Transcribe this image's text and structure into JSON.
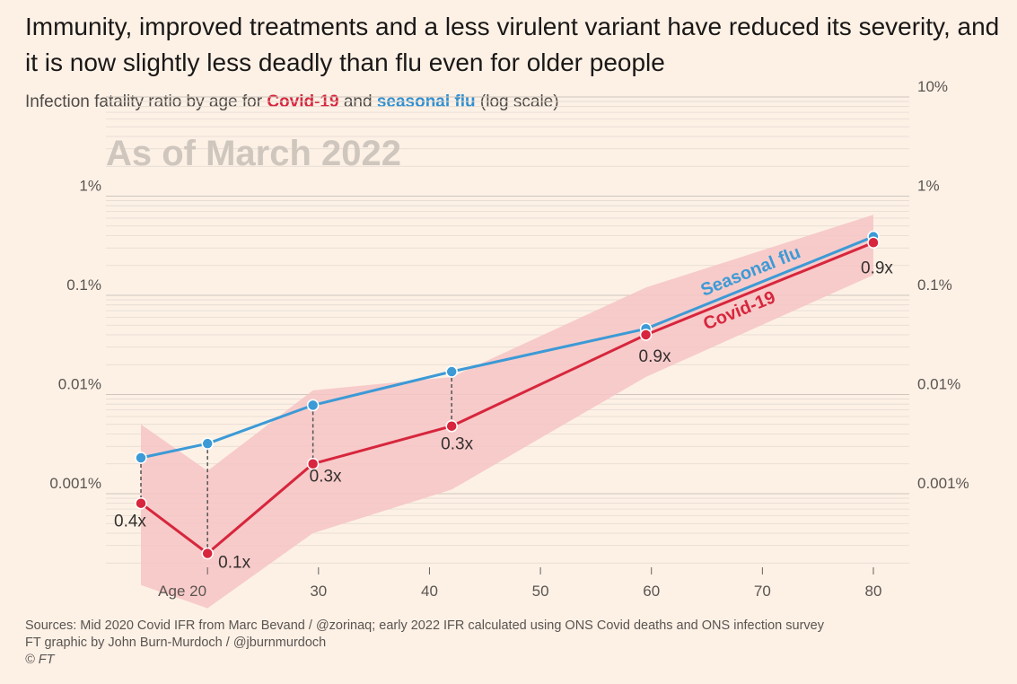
{
  "headline": "Immunity, improved treatments and a less virulent variant have reduced its severity, and it is now slightly less deadly than flu even for older people",
  "subtitle": {
    "prefix": "Infection fatality ratio by age for ",
    "covid": "Covid-19",
    "middle": " and ",
    "flu": "seasonal flu",
    "suffix": " (log scale)"
  },
  "colors": {
    "background": "#fdf1e6",
    "covid": "#d7263d",
    "flu": "#3c9ad6",
    "band": "#f6c4c4",
    "grid": "#e4dad0"
  },
  "sources": {
    "line1": "Sources: Mid 2020 Covid IFR from Marc Bevand / @zorinaq; early 2022 IFR calculated using ONS Covid deaths and ONS infection survey",
    "line2": "FT graphic by John Burn-Murdoch / @jburnmurdoch",
    "line3": "© FT"
  },
  "chart_data": {
    "type": "line",
    "annotation": "As of March 2022",
    "yscale": "log",
    "ylim": [
      0.0001,
      10
    ],
    "xlim": [
      14,
      82
    ],
    "grid": true,
    "y_ticks": [
      {
        "value": 10,
        "left": "",
        "right": "10%"
      },
      {
        "value": 1,
        "left": "1%",
        "right": "1%"
      },
      {
        "value": 0.1,
        "left": "0.1%",
        "right": "0.1%"
      },
      {
        "value": 0.01,
        "left": "0.01%",
        "right": "0.01%"
      },
      {
        "value": 0.001,
        "left": "0.001%",
        "right": "0.001%"
      }
    ],
    "x_ticks": [
      {
        "value": 20,
        "label": "Age 20"
      },
      {
        "value": 30,
        "label": "30"
      },
      {
        "value": 40,
        "label": "40"
      },
      {
        "value": 50,
        "label": "50"
      },
      {
        "value": 60,
        "label": "60"
      },
      {
        "value": 70,
        "label": "70"
      },
      {
        "value": 80,
        "label": "80"
      }
    ],
    "series": [
      {
        "name": "Seasonal flu",
        "key": "flu",
        "x": [
          14,
          20,
          29.5,
          42,
          59.5,
          80
        ],
        "y": [
          0.0023,
          0.0032,
          0.0078,
          0.017,
          0.046,
          0.39
        ]
      },
      {
        "name": "Covid-19",
        "key": "covid",
        "x": [
          14,
          20,
          29.5,
          42,
          59.5,
          80
        ],
        "y": [
          0.0008,
          0.00025,
          0.002,
          0.0048,
          0.04,
          0.34
        ]
      }
    ],
    "covid_range_band": {
      "x": [
        14,
        20,
        29.5,
        42,
        59.5,
        80
      ],
      "upper": [
        0.005,
        0.0017,
        0.011,
        0.015,
        0.12,
        0.65
      ],
      "lower": [
        0.00012,
        7e-05,
        0.0004,
        0.0011,
        0.015,
        0.16
      ]
    },
    "ratio_labels": [
      "0.4x",
      "0.1x",
      "0.3x",
      "0.3x",
      "0.9x",
      "0.9x"
    ]
  }
}
